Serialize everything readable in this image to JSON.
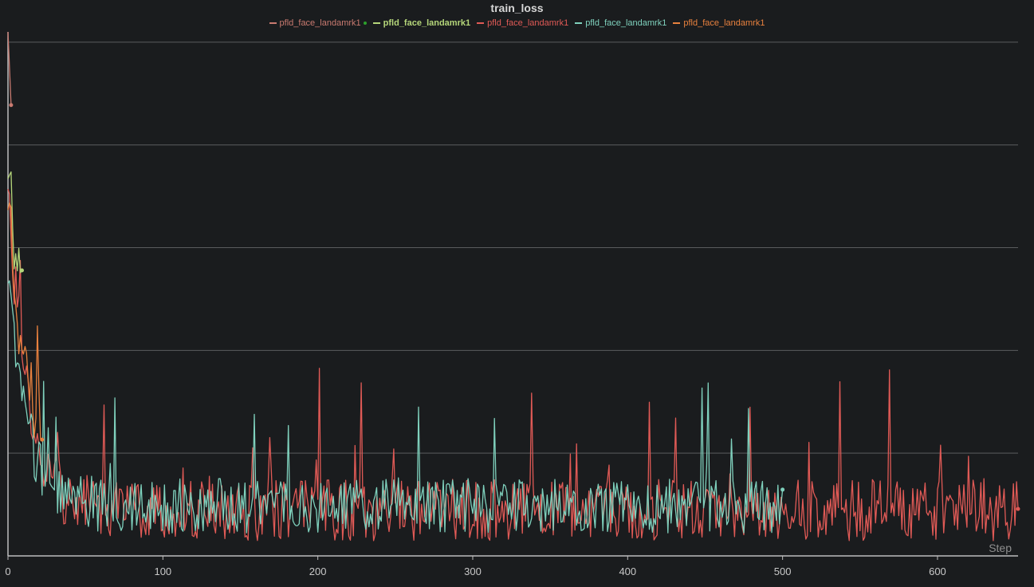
{
  "chart_data": {
    "type": "line",
    "title": "train_loss",
    "xlabel": "Step",
    "ylabel": "",
    "xlim": [
      0,
      652
    ],
    "ylim": [
      0,
      5
    ],
    "x_ticks": [
      0,
      100,
      200,
      300,
      400,
      500,
      600
    ],
    "grid": true,
    "legend_position": "top-center",
    "series": [
      {
        "name": "pfld_face_landamrk1",
        "color": "#c97a70",
        "marker_color": "#2ca02c",
        "steps": 2,
        "start": 5.0,
        "floor": 0.3,
        "noise": 0.1
      },
      {
        "name": "pfld_face_landamrk1",
        "color": "#b5d67a",
        "active": true,
        "steps": 9,
        "start": 3.6,
        "floor": 1.0,
        "noise": 0.6
      },
      {
        "name": "pfld_face_landamrk1",
        "color": "#e05a56",
        "steps": 652,
        "start": 3.5,
        "floor": 0.35,
        "noise": 0.45
      },
      {
        "name": "pfld_face_landamrk1",
        "color": "#7fd1bd",
        "steps": 500,
        "start": 2.6,
        "floor": 0.4,
        "noise": 0.4
      },
      {
        "name": "pfld_face_landamrk1",
        "color": "#e8813e",
        "steps": 22,
        "start": 3.3,
        "floor": 0.7,
        "noise": 0.5
      }
    ]
  }
}
